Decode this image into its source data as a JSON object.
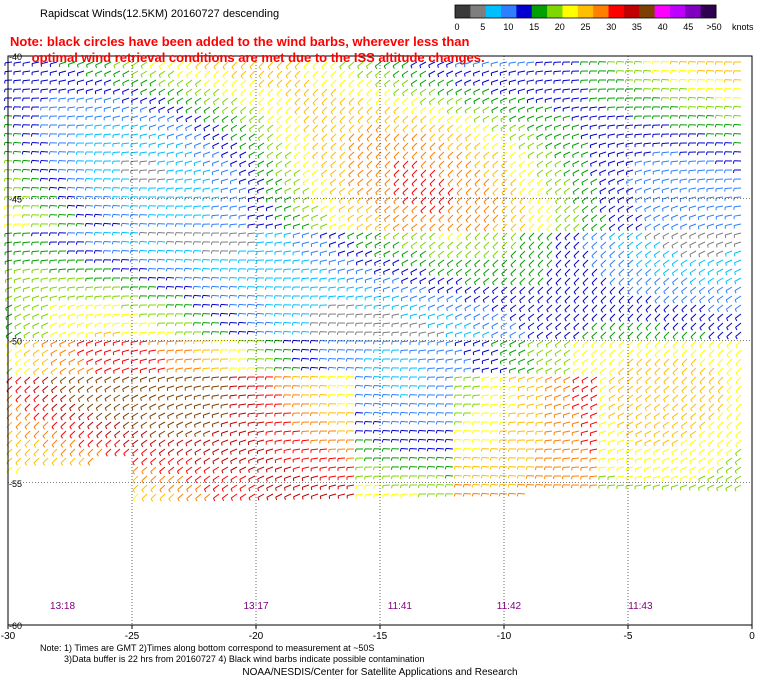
{
  "chart_data": {
    "type": "wind-barb-map",
    "title": "Rapidscat Winds(12.5KM) 20160727 descending",
    "note": "Note: black circles have been added to the wind barbs, wherever less than\n      optimal wind retrieval conditions are met due to the ISS altitude changes.",
    "colorbar": {
      "unit_label": "knots",
      "ticks": [
        "0",
        "5",
        "10",
        "15",
        "20",
        "25",
        "30",
        "35",
        "40",
        "45",
        ">50"
      ],
      "colors": [
        "#3a3a3a",
        "#7e7e7e",
        "#00bfff",
        "#2d7fff",
        "#0000d0",
        "#00a000",
        "#7fd700",
        "#ffff00",
        "#ffbf00",
        "#ff7f00",
        "#ff0000",
        "#c00000",
        "#7f3f00",
        "#ff00ff",
        "#bf00ff",
        "#7f00bf",
        "#2f004f"
      ]
    },
    "xaxis": {
      "range": [
        -30,
        0
      ],
      "ticks": [
        "-30",
        "-25",
        "-20",
        "-15",
        "-10",
        "-5",
        "0"
      ]
    },
    "yaxis": {
      "range": [
        -60,
        -40
      ],
      "ticks": [
        "-40",
        "-45",
        "-50",
        "-55",
        "-60"
      ]
    },
    "swath_times": [
      {
        "lon": -27.8,
        "label": "13:18"
      },
      {
        "lon": -20,
        "label": "13:17"
      },
      {
        "lon": -14.2,
        "label": "11:41"
      },
      {
        "lon": -9.8,
        "label": "11:42"
      },
      {
        "lon": -4.5,
        "label": "11:43"
      }
    ],
    "grid": true
  },
  "footer": {
    "line1": "Note: 1) Times are GMT 2)Times along bottom correspond to measurement at ~50S",
    "line2": "3)Data buffer is 22 hrs from 20160727 4) Black wind barbs indicate possible contamination",
    "credit": "NOAA/NESDIS/Center for Satellite Applications and Research"
  },
  "colors": {
    "time_label": "#800080",
    "note": "#ff0000"
  }
}
